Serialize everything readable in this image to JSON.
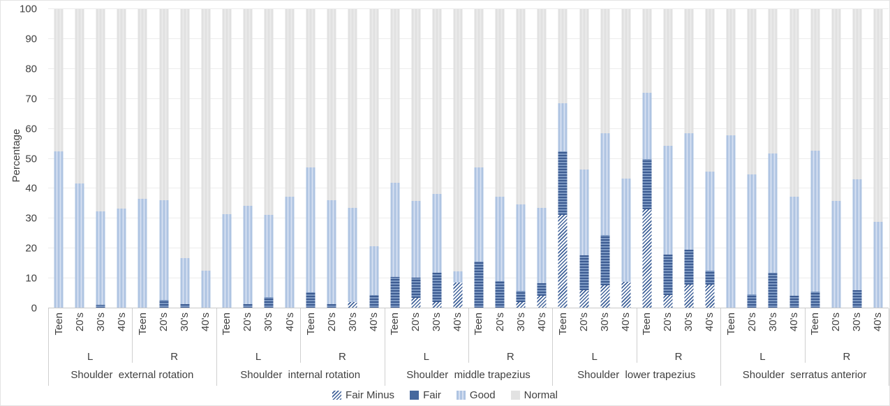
{
  "chart_data": {
    "type": "bar",
    "stacked": true,
    "title": "",
    "ylabel": "Percentage",
    "xlabel": "",
    "ylim": [
      0,
      100
    ],
    "yticks": [
      0,
      10,
      20,
      30,
      40,
      50,
      60,
      70,
      80,
      90,
      100
    ],
    "grid": true,
    "legend_position": "bottom",
    "legend": [
      {
        "name": "Fair Minus",
        "style": "hatch"
      },
      {
        "name": "Fair",
        "style": "fair"
      },
      {
        "name": "Good",
        "style": "good"
      },
      {
        "name": "Normal",
        "style": "normal"
      }
    ],
    "colors": {
      "fair_dark": "#3d5c92",
      "fair_stripe": "#7d99c3",
      "good": "#afc4e2",
      "good_stripe": "#d6e0f1",
      "normal": "#e2e2e2",
      "hatch_line": "#41639a"
    },
    "age_labels": [
      "Teen",
      "20's",
      "30's",
      "40's"
    ],
    "side_labels": [
      "L",
      "R"
    ],
    "series_order": [
      "fair_minus",
      "fair",
      "good",
      "normal"
    ],
    "groups": [
      {
        "label": "Shoulder  external rotation",
        "sides": [
          {
            "side": "L",
            "bars": [
              {
                "age": "Teen",
                "fair_minus": 0,
                "fair": 0,
                "good": 52.5,
                "normal": 47.5
              },
              {
                "age": "20's",
                "fair_minus": 0,
                "fair": 0,
                "good": 41.7,
                "normal": 58.3
              },
              {
                "age": "30's",
                "fair_minus": 0,
                "fair": 1.2,
                "good": 31.3,
                "normal": 67.5
              },
              {
                "age": "40's",
                "fair_minus": 0,
                "fair": 0,
                "good": 33.3,
                "normal": 66.7
              }
            ]
          },
          {
            "side": "R",
            "bars": [
              {
                "age": "Teen",
                "fair_minus": 0,
                "fair": 0,
                "good": 36.6,
                "normal": 63.4
              },
              {
                "age": "20's",
                "fair_minus": 0,
                "fair": 2.9,
                "good": 33.3,
                "normal": 63.8
              },
              {
                "age": "30's",
                "fair_minus": 0,
                "fair": 1.3,
                "good": 15.4,
                "normal": 83.3
              },
              {
                "age": "40's",
                "fair_minus": 0,
                "fair": 0,
                "good": 12.5,
                "normal": 87.5
              }
            ]
          }
        ]
      },
      {
        "label": "Shoulder  internal rotation",
        "sides": [
          {
            "side": "L",
            "bars": [
              {
                "age": "Teen",
                "fair_minus": 0,
                "fair": 0,
                "good": 31.5,
                "normal": 68.5
              },
              {
                "age": "20's",
                "fair_minus": 0,
                "fair": 1.5,
                "good": 32.7,
                "normal": 65.8
              },
              {
                "age": "30's",
                "fair_minus": 0,
                "fair": 3.7,
                "good": 27.5,
                "normal": 68.8
              },
              {
                "age": "40's",
                "fair_minus": 0,
                "fair": 0,
                "good": 37.2,
                "normal": 62.8
              }
            ]
          },
          {
            "side": "R",
            "bars": [
              {
                "age": "Teen",
                "fair_minus": 0,
                "fair": 5.3,
                "good": 41.9,
                "normal": 52.8
              },
              {
                "age": "20's",
                "fair_minus": 0,
                "fair": 1.5,
                "good": 34.7,
                "normal": 63.8
              },
              {
                "age": "30's",
                "fair_minus": 2.0,
                "fair": 0,
                "good": 31.6,
                "normal": 66.4
              },
              {
                "age": "40's",
                "fair_minus": 0,
                "fair": 4.5,
                "good": 16.3,
                "normal": 79.2
              }
            ]
          }
        ]
      },
      {
        "label": "Shoulder  middle trapezius",
        "sides": [
          {
            "side": "L",
            "bars": [
              {
                "age": "Teen",
                "fair_minus": 0,
                "fair": 10.4,
                "good": 31.6,
                "normal": 58.0
              },
              {
                "age": "20's",
                "fair_minus": 3.4,
                "fair": 6.9,
                "good": 25.5,
                "normal": 64.2
              },
              {
                "age": "30's",
                "fair_minus": 2.2,
                "fair": 9.8,
                "good": 26.2,
                "normal": 61.8
              },
              {
                "age": "40's",
                "fair_minus": 8.6,
                "fair": 0,
                "good": 3.8,
                "normal": 87.6
              }
            ]
          },
          {
            "side": "R",
            "bars": [
              {
                "age": "Teen",
                "fair_minus": 0,
                "fair": 15.7,
                "good": 31.5,
                "normal": 52.8
              },
              {
                "age": "20's",
                "fair_minus": 0,
                "fair": 9.0,
                "good": 28.3,
                "normal": 62.7
              },
              {
                "age": "30's",
                "fair_minus": 2.0,
                "fair": 3.8,
                "good": 29.0,
                "normal": 65.2
              },
              {
                "age": "40's",
                "fair_minus": 4.3,
                "fair": 4.2,
                "good": 25.0,
                "normal": 66.5
              }
            ]
          }
        ]
      },
      {
        "label": "Shoulder  lower trapezius",
        "sides": [
          {
            "side": "L",
            "bars": [
              {
                "age": "Teen",
                "fair_minus": 31.2,
                "fair": 21.3,
                "good": 16.0,
                "normal": 31.5
              },
              {
                "age": "20's",
                "fair_minus": 6.0,
                "fair": 11.8,
                "good": 28.5,
                "normal": 53.7
              },
              {
                "age": "30's",
                "fair_minus": 7.8,
                "fair": 16.7,
                "good": 34.0,
                "normal": 41.5
              },
              {
                "age": "40's",
                "fair_minus": 8.8,
                "fair": 0,
                "good": 34.5,
                "normal": 56.7
              }
            ]
          },
          {
            "side": "R",
            "bars": [
              {
                "age": "Teen",
                "fair_minus": 33.0,
                "fair": 17.0,
                "good": 22.0,
                "normal": 28.0
              },
              {
                "age": "20's",
                "fair_minus": 4.5,
                "fair": 13.5,
                "good": 36.3,
                "normal": 45.7
              },
              {
                "age": "30's",
                "fair_minus": 8.0,
                "fair": 11.5,
                "good": 39.0,
                "normal": 41.5
              },
              {
                "age": "40's",
                "fair_minus": 7.9,
                "fair": 4.6,
                "good": 33.3,
                "normal": 54.2
              }
            ]
          }
        ]
      },
      {
        "label": "Shoulder  serratus anterior",
        "sides": [
          {
            "side": "L",
            "bars": [
              {
                "age": "Teen",
                "fair_minus": 0,
                "fair": 0,
                "good": 57.8,
                "normal": 42.2
              },
              {
                "age": "20's",
                "fair_minus": 0,
                "fair": 4.7,
                "good": 40.0,
                "normal": 55.3
              },
              {
                "age": "30's",
                "fair_minus": 0,
                "fair": 12.0,
                "good": 39.7,
                "normal": 48.3
              },
              {
                "age": "40's",
                "fair_minus": 0,
                "fair": 4.3,
                "good": 33.0,
                "normal": 62.7
              }
            ]
          },
          {
            "side": "R",
            "bars": [
              {
                "age": "Teen",
                "fair_minus": 0,
                "fair": 5.5,
                "good": 47.1,
                "normal": 47.4
              },
              {
                "age": "20's",
                "fair_minus": 0,
                "fair": 0,
                "good": 35.8,
                "normal": 64.2
              },
              {
                "age": "30's",
                "fair_minus": 0,
                "fair": 6.0,
                "good": 37.2,
                "normal": 56.8
              },
              {
                "age": "40's",
                "fair_minus": 0,
                "fair": 0,
                "good": 28.8,
                "normal": 71.2
              }
            ]
          }
        ]
      }
    ]
  }
}
